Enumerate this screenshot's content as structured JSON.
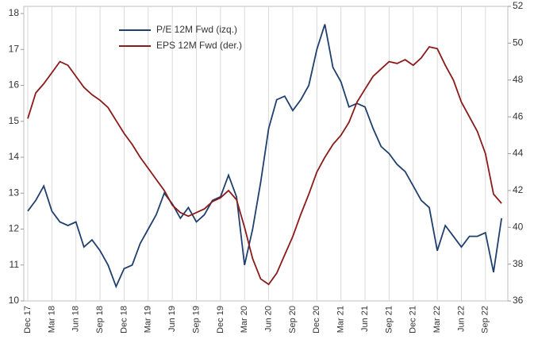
{
  "chart_data": {
    "type": "line",
    "categories": [
      "Dec 17",
      null,
      null,
      "Mar 18",
      null,
      null,
      "Jun 18",
      null,
      null,
      "Sep 18",
      null,
      null,
      "Dec 18",
      null,
      null,
      "Mar 19",
      null,
      null,
      "Jun 19",
      null,
      null,
      "Sep 19",
      null,
      null,
      "Dec 19",
      null,
      null,
      "Mar 20",
      null,
      null,
      "Jun 20",
      null,
      null,
      "Sep 20",
      null,
      null,
      "Dec 20",
      null,
      null,
      "Mar 21",
      null,
      null,
      "Jun 21",
      null,
      null,
      "Sep 21",
      null,
      null,
      "Dec 21",
      null,
      null,
      "Mar 22",
      null,
      null,
      "Jun 22",
      null,
      null,
      "Sep 22",
      null,
      null
    ],
    "series": [
      {
        "name": "P/E 12M Fwd (izq.)",
        "color": "#1f3f6e",
        "axis": "y",
        "values": [
          12.5,
          12.8,
          13.2,
          12.5,
          12.2,
          12.1,
          12.2,
          11.5,
          11.7,
          11.4,
          11.0,
          10.4,
          10.9,
          11.0,
          11.6,
          12.0,
          12.4,
          13.0,
          12.7,
          12.3,
          12.6,
          12.2,
          12.4,
          12.8,
          12.9,
          13.5,
          12.9,
          11.0,
          12.0,
          13.3,
          14.8,
          15.6,
          15.7,
          15.3,
          15.6,
          16.0,
          17.0,
          17.7,
          16.5,
          16.1,
          15.4,
          15.5,
          15.4,
          14.8,
          14.3,
          14.1,
          13.8,
          13.6,
          13.2,
          12.8,
          12.6,
          11.4,
          12.1,
          11.8,
          11.5,
          11.8,
          11.8,
          11.9,
          10.8,
          12.3
        ]
      },
      {
        "name": "EPS 12M Fwd (der.)",
        "color": "#8b1a1a",
        "axis": "y2",
        "values": [
          45.9,
          47.3,
          47.8,
          48.4,
          49.0,
          48.8,
          48.2,
          47.6,
          47.2,
          46.9,
          46.5,
          45.8,
          45.1,
          44.5,
          43.8,
          43.2,
          42.6,
          42.0,
          41.2,
          40.8,
          40.6,
          40.8,
          41.0,
          41.4,
          41.6,
          42.0,
          41.5,
          40.0,
          38.3,
          37.2,
          36.9,
          37.5,
          38.5,
          39.5,
          40.7,
          41.8,
          43.0,
          43.8,
          44.5,
          45.0,
          45.7,
          46.8,
          47.5,
          48.2,
          48.6,
          49.0,
          48.9,
          49.1,
          48.8,
          49.2,
          49.8,
          49.7,
          48.8,
          48.0,
          46.8,
          46.0,
          45.2,
          44.0,
          41.8,
          41.3
        ]
      }
    ],
    "ylim": [
      10,
      18.2
    ],
    "yticks": [
      10,
      11,
      12,
      13,
      14,
      15,
      16,
      17,
      18
    ],
    "y2lim": [
      36,
      52
    ],
    "y2ticks": [
      36,
      38,
      40,
      42,
      44,
      46,
      48,
      50,
      52
    ],
    "grid": true
  }
}
